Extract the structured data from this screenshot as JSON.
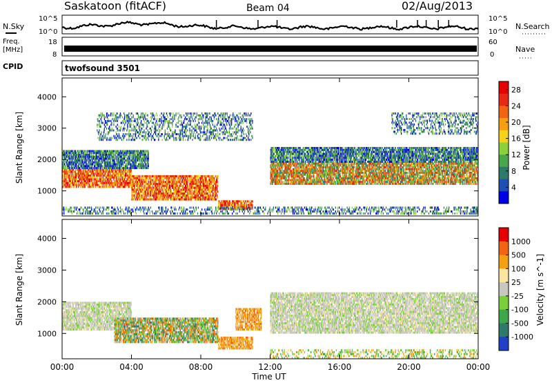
{
  "header": {
    "station": "Saskatoon (fitACF)",
    "beam": "Beam 04",
    "date": "02/Aug/2013"
  },
  "left_labels": {
    "nsky": "N.Sky",
    "freq_line1": "Freq.",
    "freq_line2": "[MHz]",
    "cpid": "CPID"
  },
  "right_labels": {
    "nsearch": "N.Search",
    "nave": "Nave"
  },
  "cpid_text": "twofsound 3501",
  "noise_axes": {
    "left_top": "10^5",
    "left_bottom": "10^0",
    "right_top": "10^5",
    "right_bottom": "10^0"
  },
  "freq_axes": {
    "left_top": "18",
    "left_bottom": "8",
    "right_top": "60",
    "right_bottom": "0"
  },
  "chart_data": [
    {
      "type": "heatmap",
      "name": "power",
      "ylabel": "Slant Range [km]",
      "yticks": [
        "1000",
        "2000",
        "3000",
        "4000"
      ],
      "ylim": [
        200,
        4600
      ],
      "xlim": [
        0,
        24
      ],
      "colorbar": {
        "label": "Power [dB]",
        "ticks": [
          "4",
          "8",
          "12",
          "16",
          "20",
          "24",
          "28"
        ],
        "range": [
          0,
          30
        ],
        "colors": [
          "#0000e6",
          "#1e50b4",
          "#2d7a6a",
          "#4aa64a",
          "#8cd13c",
          "#f5d31c",
          "#f5a012",
          "#f06414",
          "#e62814",
          "#e60000"
        ]
      },
      "bands": [
        {
          "t0": 0,
          "t1": 4,
          "r0": 1100,
          "r1": 1700,
          "level": "high"
        },
        {
          "t0": 4,
          "t1": 9,
          "r0": 700,
          "r1": 1500,
          "level": "high"
        },
        {
          "t0": 9,
          "t1": 11,
          "r0": 400,
          "r1": 700,
          "level": "high"
        },
        {
          "t0": 12,
          "t1": 24,
          "r0": 1200,
          "r1": 1900,
          "level": "medium"
        },
        {
          "t0": 12,
          "t1": 24,
          "r0": 1900,
          "r1": 2400,
          "level": "low"
        },
        {
          "t0": 0,
          "t1": 5,
          "r0": 1700,
          "r1": 2300,
          "level": "low"
        },
        {
          "t0": 2,
          "t1": 11,
          "r0": 2600,
          "r1": 3500,
          "level": "sparse"
        },
        {
          "t0": 19,
          "t1": 24,
          "r0": 2800,
          "r1": 3500,
          "level": "sparse"
        },
        {
          "t0": 0,
          "t1": 24,
          "r0": 250,
          "r1": 500,
          "level": "sparse"
        }
      ]
    },
    {
      "type": "heatmap",
      "name": "velocity",
      "ylabel": "Slant Range [km]",
      "yticks": [
        "1000",
        "2000",
        "3000",
        "4000"
      ],
      "ylim": [
        200,
        4600
      ],
      "xlim": [
        0,
        24
      ],
      "colorbar": {
        "label": "Velocity [m s^-1]",
        "ticks": [
          "1000",
          "500",
          "100",
          "25",
          "-25",
          "-100",
          "-500",
          "-1000"
        ],
        "colors": [
          "#2040c8",
          "#2d7a6a",
          "#3ca84a",
          "#7ad03c",
          "#c8c8c0",
          "#fae6a0",
          "#f5a012",
          "#f06414",
          "#e60000"
        ]
      },
      "bands": [
        {
          "t0": 0,
          "t1": 4,
          "r0": 1100,
          "r1": 2000,
          "level": "gray"
        },
        {
          "t0": 3,
          "t1": 9,
          "r0": 700,
          "r1": 1500,
          "level": "green_orange"
        },
        {
          "t0": 9,
          "t1": 11,
          "r0": 500,
          "r1": 900,
          "level": "orange"
        },
        {
          "t0": 10,
          "t1": 11.5,
          "r0": 1100,
          "r1": 1800,
          "level": "orange"
        },
        {
          "t0": 12,
          "t1": 24,
          "r0": 1000,
          "r1": 2300,
          "level": "gray"
        },
        {
          "t0": 12,
          "t1": 24,
          "r0": 200,
          "r1": 500,
          "level": "orange_sparse"
        }
      ]
    }
  ],
  "xaxis": {
    "ticks": [
      "00:00",
      "04:00",
      "08:00",
      "12:00",
      "16:00",
      "20:00",
      "00:00"
    ],
    "label": "Time UT"
  }
}
